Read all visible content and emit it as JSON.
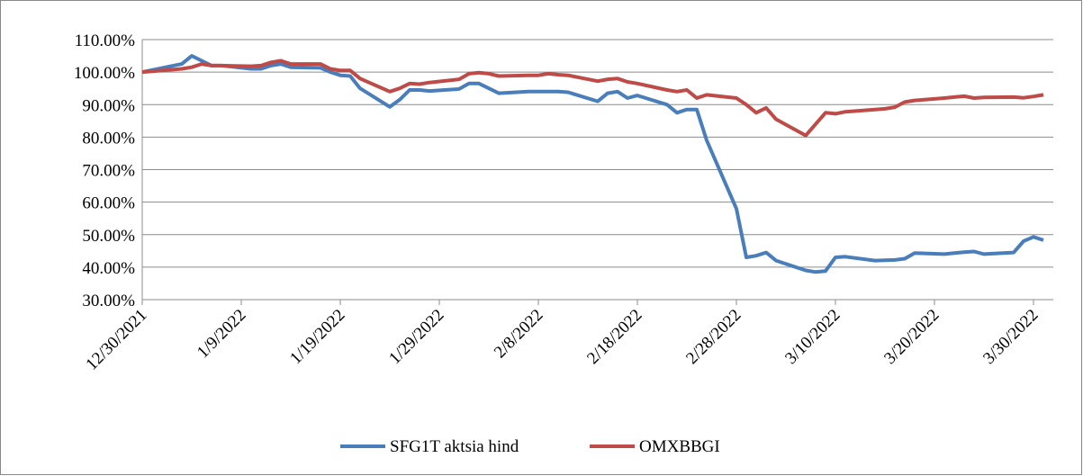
{
  "chart_data": {
    "type": "line",
    "x": [
      "12/30/2021",
      "1/3/2022",
      "1/4/2022",
      "1/5/2022",
      "1/6/2022",
      "1/7/2022",
      "1/10/2022",
      "1/11/2022",
      "1/12/2022",
      "1/13/2022",
      "1/14/2022",
      "1/17/2022",
      "1/18/2022",
      "1/19/2022",
      "1/20/2022",
      "1/21/2022",
      "1/24/2022",
      "1/25/2022",
      "1/26/2022",
      "1/27/2022",
      "1/28/2022",
      "1/31/2022",
      "2/1/2022",
      "2/2/2022",
      "2/3/2022",
      "2/4/2022",
      "2/7/2022",
      "2/8/2022",
      "2/9/2022",
      "2/10/2022",
      "2/11/2022",
      "2/14/2022",
      "2/15/2022",
      "2/16/2022",
      "2/17/2022",
      "2/18/2022",
      "2/21/2022",
      "2/22/2022",
      "2/23/2022",
      "2/24/2022",
      "2/25/2022",
      "2/28/2022",
      "3/1/2022",
      "3/2/2022",
      "3/3/2022",
      "3/4/2022",
      "3/7/2022",
      "3/8/2022",
      "3/9/2022",
      "3/10/2022",
      "3/11/2022",
      "3/14/2022",
      "3/15/2022",
      "3/16/2022",
      "3/17/2022",
      "3/18/2022",
      "3/21/2022",
      "3/22/2022",
      "3/23/2022",
      "3/24/2022",
      "3/25/2022",
      "3/28/2022",
      "3/29/2022",
      "3/30/2022",
      "3/31/2022"
    ],
    "series": [
      {
        "name": "SFG1T aktsia hind",
        "color": "#4a7ebb",
        "values": [
          100,
          102.5,
          105,
          103.5,
          102,
          102,
          101,
          101,
          102,
          102.5,
          101.5,
          101.3,
          100,
          99,
          98.8,
          95,
          89.3,
          91.5,
          94.5,
          94.5,
          94.2,
          94.8,
          96.5,
          96.5,
          95,
          93.5,
          94,
          94,
          94,
          94,
          93.8,
          91,
          93.5,
          94,
          92,
          92.8,
          90,
          87.5,
          88.5,
          88.5,
          79,
          58,
          43,
          43.5,
          44.5,
          42,
          39,
          38.5,
          38.8,
          43,
          43.2,
          42,
          42.1,
          42.2,
          42.6,
          44.3,
          44,
          44.3,
          44.6,
          44.8,
          44,
          44.5,
          48,
          49.3,
          48.3
        ]
      },
      {
        "name": "OMXBBGI",
        "color": "#be4b48",
        "values": [
          100,
          101,
          101.5,
          102.5,
          102,
          102,
          101.8,
          102,
          103,
          103.5,
          102.5,
          102.5,
          101,
          100.5,
          100.5,
          98,
          94,
          95,
          96.5,
          96.3,
          96.8,
          97.8,
          99.5,
          99.8,
          99.5,
          98.8,
          99,
          99,
          99.5,
          99.2,
          99,
          97.2,
          97.8,
          98,
          97,
          96.5,
          94.5,
          94,
          94.5,
          92,
          93,
          92,
          90,
          87.5,
          89,
          85.5,
          80.5,
          84,
          87.5,
          87.2,
          87.8,
          88.5,
          88.7,
          89.2,
          90.8,
          91.3,
          92,
          92.3,
          92.6,
          92,
          92.2,
          92.3,
          92.1,
          92.5,
          93
        ]
      }
    ],
    "xlim": [
      "12/30/2021",
      "4/1/2022"
    ],
    "xticks": [
      "12/30/2021",
      "1/9/2022",
      "1/19/2022",
      "1/29/2022",
      "2/8/2022",
      "2/18/2022",
      "2/28/2022",
      "3/10/2022",
      "3/20/2022",
      "3/30/2022"
    ],
    "ylim": [
      30,
      110
    ],
    "yticks": [
      {
        "value": 30,
        "label": "30.00%"
      },
      {
        "value": 40,
        "label": "40.00%"
      },
      {
        "value": 50,
        "label": "50.00%"
      },
      {
        "value": 60,
        "label": "60.00%"
      },
      {
        "value": 70,
        "label": "70.00%"
      },
      {
        "value": 80,
        "label": "80.00%"
      },
      {
        "value": 90,
        "label": "90.00%"
      },
      {
        "value": 100,
        "label": "100.00%"
      },
      {
        "value": 110,
        "label": "110.00%"
      }
    ],
    "grid": true,
    "legend": "bottom"
  }
}
